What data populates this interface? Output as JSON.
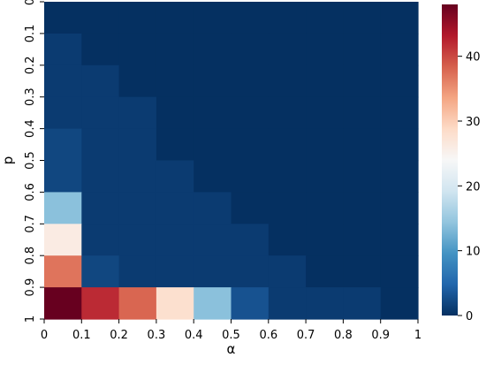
{
  "chart_data": {
    "type": "heatmap",
    "title": "",
    "xlabel": "α",
    "ylabel": "p",
    "x_tick_labels": [
      "0",
      "0.1",
      "0.2",
      "0.3",
      "0.4",
      "0.5",
      "0.6",
      "0.7",
      "0.8",
      "0.9",
      "1"
    ],
    "y_tick_labels": [
      "0",
      "0.1",
      "0.2",
      "0.3",
      "0.4",
      "0.5",
      "0.6",
      "0.7",
      "0.8",
      "0.9",
      "1"
    ],
    "colormap": "RdBu_r",
    "colorbar": {
      "range": [
        0,
        48
      ],
      "ticks": [
        0,
        10,
        20,
        30,
        40
      ],
      "tick_labels": [
        "0",
        "10",
        "20",
        "30",
        "40"
      ]
    },
    "rows_y_from_0_to_0.9": [
      [
        0,
        0,
        0,
        0,
        0,
        0,
        0,
        0,
        0,
        0
      ],
      [
        1,
        0,
        0,
        0,
        0,
        0,
        0,
        0,
        0,
        0
      ],
      [
        1,
        1,
        0,
        0,
        0,
        0,
        0,
        0,
        0,
        0
      ],
      [
        1,
        1,
        1,
        0,
        0,
        0,
        0,
        0,
        0,
        0
      ],
      [
        2,
        1,
        1,
        0,
        0,
        0,
        0,
        0,
        0,
        0
      ],
      [
        2,
        1,
        1,
        1,
        0,
        0,
        0,
        0,
        0,
        0
      ],
      [
        14,
        1,
        1,
        1,
        1,
        0,
        0,
        0,
        0,
        0
      ],
      [
        26,
        1,
        1,
        1,
        1,
        1,
        0,
        0,
        0,
        0
      ],
      [
        37,
        2,
        1,
        1,
        1,
        1,
        1,
        0,
        0,
        0
      ],
      [
        48,
        42,
        38,
        28,
        14,
        3,
        1,
        1,
        1,
        0
      ]
    ]
  },
  "colors": {
    "scale": [
      "#053061",
      "#2166ac",
      "#4393c3",
      "#92c5de",
      "#d1e5f0",
      "#f7f7f7",
      "#fddbc7",
      "#f4a582",
      "#d6604d",
      "#b2182b",
      "#67001f"
    ]
  }
}
